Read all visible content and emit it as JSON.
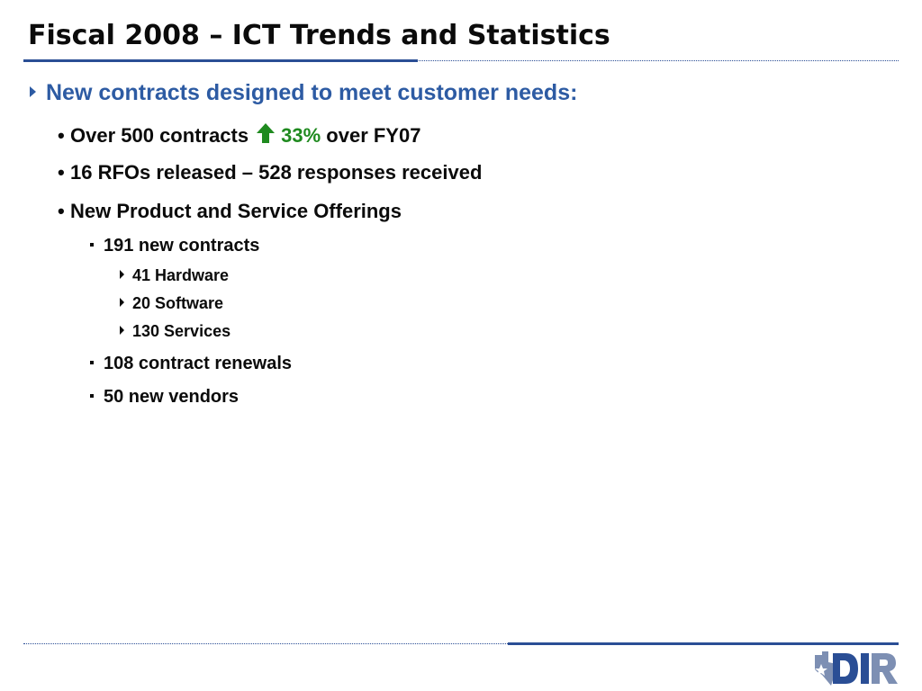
{
  "slide": {
    "title": "Fiscal 2008 – ICT Trends and Statistics",
    "heading": "New contracts designed to meet customer needs:",
    "bullets": {
      "b1_pre": "Over 500 contracts",
      "b1_pct": "33%",
      "b1_post": "over FY07",
      "b2": "16 RFOs released – 528 responses received",
      "b3": "New Product and Service Offerings",
      "sub1": "191 new contracts",
      "sub1_items": [
        "41 Hardware",
        "20 Software",
        "130 Services"
      ],
      "sub2": "108 contract renewals",
      "sub3": "50 new vendors"
    }
  },
  "logo": {
    "text": "DIR",
    "icon": "texas-map-icon"
  },
  "colors": {
    "accent_blue": "#2d5ba3",
    "rule_blue": "#2a4e95",
    "up_green": "#1f8a1f"
  },
  "icons": {
    "increase": "up-arrow-icon"
  }
}
